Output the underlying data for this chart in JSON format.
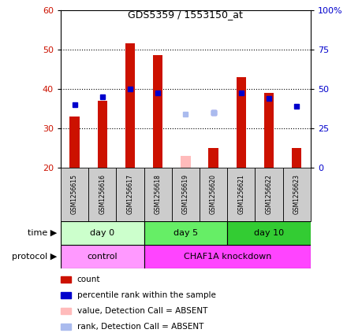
{
  "title": "GDS5359 / 1553150_at",
  "samples": [
    "GSM1256615",
    "GSM1256616",
    "GSM1256617",
    "GSM1256618",
    "GSM1256619",
    "GSM1256620",
    "GSM1256621",
    "GSM1256622",
    "GSM1256623"
  ],
  "count_values": [
    33,
    37,
    51.5,
    48.5,
    null,
    25,
    43,
    39,
    25
  ],
  "count_absent": [
    null,
    null,
    null,
    null,
    23,
    null,
    null,
    null,
    null
  ],
  "rank_values": [
    36,
    38,
    40,
    39,
    null,
    34,
    39,
    37.5,
    35.5
  ],
  "rank_absent": [
    null,
    null,
    null,
    null,
    33.5,
    34,
    null,
    null,
    null
  ],
  "ylim_left": [
    20,
    60
  ],
  "ylim_right": [
    0,
    100
  ],
  "yticks_left": [
    20,
    30,
    40,
    50,
    60
  ],
  "yticks_right": [
    0,
    25,
    50,
    75,
    100
  ],
  "ytick_labels_right": [
    "0",
    "25",
    "50",
    "75",
    "100%"
  ],
  "time_groups": [
    {
      "label": "day 0",
      "start": 0,
      "end": 3,
      "color": "#ccffcc"
    },
    {
      "label": "day 5",
      "start": 3,
      "end": 6,
      "color": "#66ee66"
    },
    {
      "label": "day 10",
      "start": 6,
      "end": 9,
      "color": "#33cc33"
    }
  ],
  "protocol_groups": [
    {
      "label": "control",
      "start": 0,
      "end": 3,
      "color": "#ff99ff"
    },
    {
      "label": "CHAF1A knockdown",
      "start": 3,
      "end": 9,
      "color": "#ff44ff"
    }
  ],
  "bar_color": "#cc1100",
  "bar_absent_color": "#ffbbbb",
  "rank_color": "#0000cc",
  "rank_absent_color": "#aabbee",
  "bar_width": 0.35,
  "legend_items": [
    {
      "color": "#cc1100",
      "label": "count"
    },
    {
      "color": "#0000cc",
      "label": "percentile rank within the sample"
    },
    {
      "color": "#ffbbbb",
      "label": "value, Detection Call = ABSENT"
    },
    {
      "color": "#aabbee",
      "label": "rank, Detection Call = ABSENT"
    }
  ],
  "label_time": "time",
  "label_protocol": "protocol",
  "tick_label_color_left": "#cc1100",
  "tick_label_color_right": "#0000cc",
  "bg_color": "#ffffff",
  "sample_box_color": "#cccccc",
  "plot_border_color": "#000000"
}
